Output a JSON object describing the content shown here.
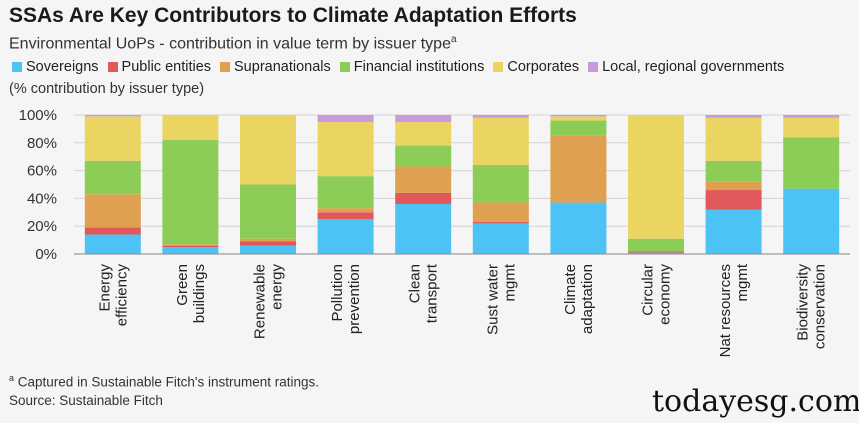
{
  "header": {
    "title": "SSAs Are Key Contributors to Climate Adaptation Efforts",
    "subtitle": "Environmental UoPs - contribution in value term by issuer type",
    "subtitle_sup": "a",
    "unit_note": "(% contribution by issuer type)"
  },
  "footer": {
    "footnote_sup": "a",
    "footnote": "Captured in Sustainable Fitch's instrument ratings.",
    "source": "Source: Sustainable Fitch"
  },
  "watermark": "todayesg.com",
  "chart_data": {
    "type": "bar",
    "stacked": true,
    "categories": [
      [
        "Energy",
        "efficiency"
      ],
      [
        "Green",
        "buildings"
      ],
      [
        "Renewable",
        "energy"
      ],
      [
        "Pollution",
        "prevention"
      ],
      [
        "Clean",
        "transport"
      ],
      [
        "Sust water",
        "mgmt"
      ],
      [
        "Climate",
        "adaptation"
      ],
      [
        "Circular",
        "economy"
      ],
      [
        "Nat resources",
        "mgmt"
      ],
      [
        "Biodiversity",
        "conservation"
      ]
    ],
    "series": [
      {
        "name": "Sovereigns",
        "color": "#4dc3f5",
        "values": [
          14,
          5,
          6,
          25,
          36,
          22,
          37,
          1,
          32,
          47
        ]
      },
      {
        "name": "Public entities",
        "color": "#e0585a",
        "values": [
          5,
          1,
          3,
          5,
          8,
          1,
          0,
          1,
          14,
          0
        ]
      },
      {
        "name": "Supranationals",
        "color": "#e0a051",
        "values": [
          24,
          1,
          2,
          3,
          19,
          14,
          48,
          0,
          6,
          0
        ]
      },
      {
        "name": "Financial institutions",
        "color": "#8ccd58",
        "values": [
          24,
          75,
          39,
          23,
          15,
          27,
          11,
          9,
          15,
          37
        ]
      },
      {
        "name": "Corporates",
        "color": "#ead462",
        "values": [
          32,
          18,
          50,
          39,
          17,
          34,
          3,
          89,
          31,
          14
        ]
      },
      {
        "name": "Local, regional governments",
        "color": "#c79bdb",
        "values": [
          1,
          0,
          0,
          5,
          5,
          2,
          1,
          0,
          2,
          2
        ]
      }
    ],
    "yticks": [
      "0%",
      "20%",
      "40%",
      "60%",
      "80%",
      "100%"
    ],
    "ylim": [
      0,
      100
    ],
    "grid": true,
    "legend": "top"
  }
}
